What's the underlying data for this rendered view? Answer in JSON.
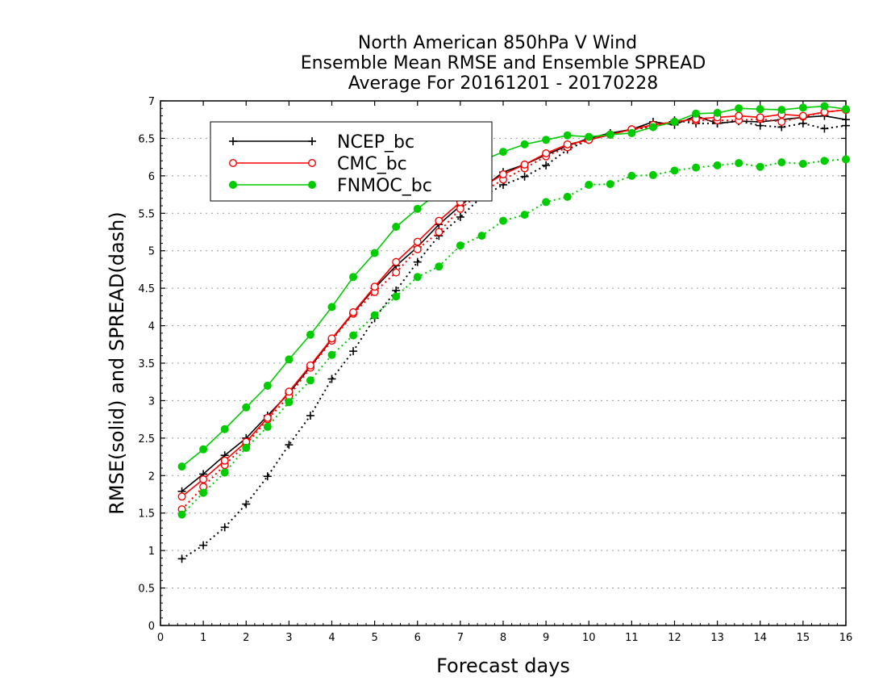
{
  "chart_data": {
    "type": "line",
    "title_lines": [
      "North American 850hPa V Wind",
      "Ensemble Mean RMSE and Ensemble SPREAD",
      "Average For 20161201 - 20170228"
    ],
    "xlabel": "Forecast days",
    "ylabel": "RMSE(solid) and SPREAD(dash)",
    "xlim": [
      0,
      16
    ],
    "ylim": [
      0,
      7
    ],
    "x_ticks": [
      "0",
      "1",
      "2",
      "3",
      "4",
      "5",
      "6",
      "7",
      "8",
      "9",
      "10",
      "11",
      "12",
      "13",
      "14",
      "15",
      "16"
    ],
    "y_ticks": [
      "0",
      "0.5",
      "1",
      "1.5",
      "2",
      "2.5",
      "3",
      "3.5",
      "4",
      "4.5",
      "5",
      "5.5",
      "6",
      "6.5",
      "7"
    ],
    "grid": "horizontal-dotted",
    "legend_position": "top-left",
    "x": [
      0.5,
      1,
      1.5,
      2,
      2.5,
      3,
      3.5,
      4,
      4.5,
      5,
      5.5,
      6,
      6.5,
      7,
      7.5,
      8,
      8.5,
      9,
      9.5,
      10,
      10.5,
      11,
      11.5,
      12,
      12.5,
      13,
      13.5,
      14,
      14.5,
      15,
      15.5,
      16
    ],
    "series": [
      {
        "name": "NCEP_bc",
        "color": "#000000",
        "marker": "plus",
        "rmse": [
          1.79,
          2.02,
          2.27,
          2.5,
          2.8,
          3.1,
          3.45,
          3.82,
          4.17,
          4.5,
          4.8,
          5.05,
          5.35,
          5.6,
          5.83,
          6.05,
          6.15,
          6.28,
          6.4,
          6.5,
          6.57,
          6.62,
          6.72,
          6.68,
          6.8,
          6.7,
          6.73,
          6.72,
          6.75,
          6.78,
          6.8,
          6.75
        ],
        "spread": [
          0.89,
          1.07,
          1.31,
          1.62,
          1.99,
          2.41,
          2.8,
          3.29,
          3.66,
          4.1,
          4.47,
          4.85,
          5.2,
          5.45,
          5.72,
          5.88,
          5.99,
          6.14,
          6.35,
          6.48,
          6.56,
          6.62,
          6.65,
          6.74,
          6.7,
          6.7,
          6.73,
          6.67,
          6.65,
          6.7,
          6.63,
          6.67
        ]
      },
      {
        "name": "CMC_bc",
        "color": "#ff0000",
        "marker": "circle",
        "rmse": [
          1.72,
          1.95,
          2.2,
          2.45,
          2.77,
          3.12,
          3.47,
          3.83,
          4.18,
          4.52,
          4.85,
          5.12,
          5.4,
          5.65,
          5.85,
          6.02,
          6.15,
          6.3,
          6.42,
          6.48,
          6.55,
          6.62,
          6.68,
          6.72,
          6.76,
          6.78,
          6.8,
          6.78,
          6.82,
          6.8,
          6.85,
          6.88
        ],
        "spread": [
          1.55,
          1.85,
          2.14,
          2.42,
          2.75,
          3.06,
          3.44,
          3.8,
          4.16,
          4.45,
          4.71,
          5.02,
          5.25,
          5.56,
          5.78,
          5.95,
          6.1,
          6.26,
          6.38,
          6.48,
          6.55,
          6.62,
          6.66,
          6.72,
          6.74,
          6.74,
          6.74,
          6.76,
          6.72,
          6.79,
          6.85,
          6.88
        ]
      },
      {
        "name": "FNMOC_bc",
        "color": "#00cc00",
        "marker": "dot",
        "rmse": [
          2.12,
          2.35,
          2.62,
          2.91,
          3.2,
          3.55,
          3.88,
          4.25,
          4.65,
          4.97,
          5.32,
          5.56,
          5.78,
          6.05,
          6.2,
          6.32,
          6.42,
          6.48,
          6.54,
          6.52,
          6.55,
          6.57,
          6.65,
          6.72,
          6.83,
          6.84,
          6.9,
          6.89,
          6.88,
          6.91,
          6.93,
          6.89
        ],
        "spread": [
          1.48,
          1.77,
          2.04,
          2.37,
          2.65,
          2.98,
          3.27,
          3.61,
          3.87,
          4.14,
          4.39,
          4.65,
          4.79,
          5.07,
          5.2,
          5.4,
          5.48,
          5.65,
          5.72,
          5.88,
          5.89,
          6.0,
          6.01,
          6.07,
          6.11,
          6.14,
          6.17,
          6.12,
          6.18,
          6.16,
          6.2,
          6.22
        ]
      }
    ]
  }
}
